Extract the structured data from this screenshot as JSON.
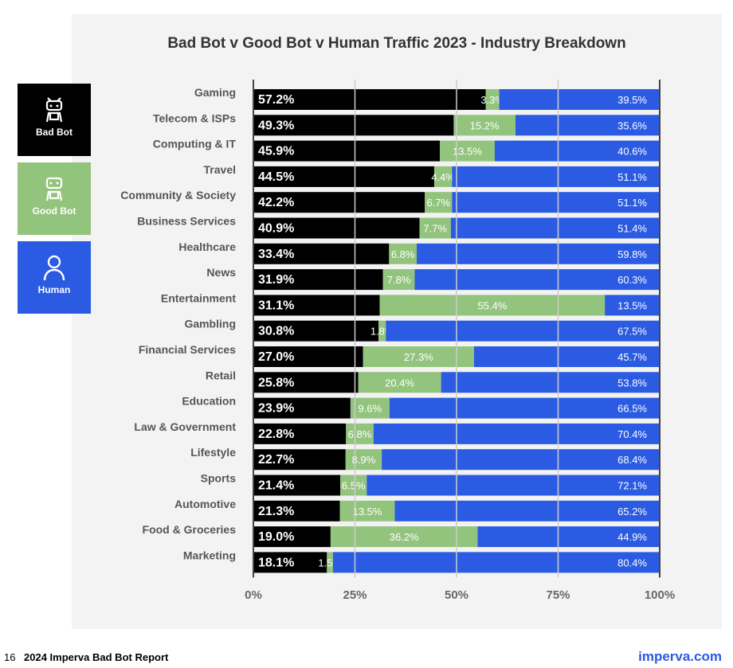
{
  "chart_data": {
    "type": "bar",
    "orientation": "horizontal",
    "stacked": true,
    "title": "Bad Bot v Good Bot v Human Traffic 2023 -  Industry Breakdown",
    "categories": [
      "Gaming",
      "Telecom & ISPs",
      "Computing & IT",
      "Travel",
      "Community & Society",
      "Business Services",
      "Healthcare",
      "News",
      "Entertainment",
      "Gambling",
      "Financial Services",
      "Retail",
      "Education",
      "Law & Government",
      "Lifestyle",
      "Sports",
      "Automotive",
      "Food & Groceries",
      "Marketing"
    ],
    "series": [
      {
        "name": "Bad Bot",
        "color": "#000000",
        "values": [
          57.2,
          49.3,
          45.9,
          44.5,
          42.2,
          40.9,
          33.4,
          31.9,
          31.1,
          30.8,
          27.0,
          25.8,
          23.9,
          22.8,
          22.7,
          21.4,
          21.3,
          19.0,
          18.1
        ]
      },
      {
        "name": "Good Bot",
        "color": "#93c47d",
        "values": [
          3.3,
          15.2,
          13.5,
          4.4,
          6.7,
          7.7,
          6.8,
          7.8,
          55.4,
          1.8,
          27.3,
          20.4,
          9.6,
          6.8,
          8.9,
          6.5,
          13.5,
          36.2,
          1.5
        ]
      },
      {
        "name": "Human",
        "color": "#2b5be3",
        "values": [
          39.5,
          35.6,
          40.6,
          51.1,
          51.1,
          51.4,
          59.8,
          60.3,
          13.5,
          67.5,
          45.7,
          53.8,
          66.5,
          70.4,
          68.4,
          72.1,
          65.2,
          44.9,
          80.4
        ]
      }
    ],
    "xlim": [
      0,
      100
    ],
    "xticks": [
      "0%",
      "25%",
      "50%",
      "75%",
      "100%"
    ],
    "grid": true,
    "legend_position": "left"
  },
  "footer": {
    "page": "16",
    "report": "2024 Imperva Bad Bot Report",
    "site": "imperva.com"
  }
}
